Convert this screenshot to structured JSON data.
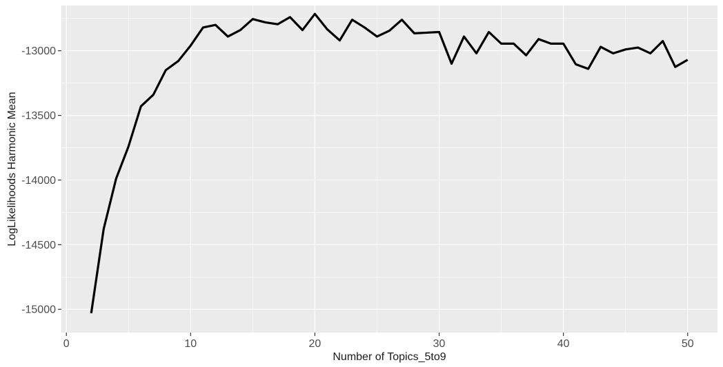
{
  "chart_data": {
    "type": "line",
    "title": "",
    "xlabel": "Number of Topics_5to9",
    "ylabel": "LogLikelihoods Harmonic Mean",
    "xlim": [
      -0.4,
      52.4
    ],
    "ylim": [
      -15180,
      -12650
    ],
    "x_ticks": [
      0,
      10,
      20,
      30,
      40,
      50
    ],
    "x_tick_labels": [
      "0",
      "10",
      "20",
      "30",
      "40",
      "50"
    ],
    "y_ticks": [
      -15000,
      -14500,
      -14000,
      -13500,
      -13000
    ],
    "y_tick_labels": [
      "-15000",
      "-14500",
      "-14000",
      "-13500",
      "-13000"
    ],
    "grid": true,
    "legend": "none",
    "colors": {
      "panel_background": "#ebebeb",
      "grid_major": "#ffffff",
      "line": "#000000",
      "tick_mark": "#333333"
    },
    "series": [
      {
        "x": [
          2,
          3,
          4,
          5,
          6,
          7,
          8,
          9,
          10,
          11,
          12,
          13,
          14,
          15,
          16,
          17,
          18,
          19,
          20,
          21,
          22,
          23,
          24,
          25,
          26,
          27,
          28,
          29,
          30,
          31,
          32,
          33,
          34,
          35,
          36,
          37,
          38,
          39,
          40,
          41,
          42,
          43,
          44,
          45,
          46,
          47,
          48,
          49,
          50
        ],
        "values": [
          -15030,
          -14380,
          -13990,
          -13740,
          -13430,
          -13340,
          -13150,
          -13080,
          -12960,
          -12820,
          -12800,
          -12890,
          -12840,
          -12755,
          -12780,
          -12795,
          -12740,
          -12840,
          -12715,
          -12835,
          -12920,
          -12760,
          -12820,
          -12890,
          -12845,
          -12760,
          -12865,
          -12860,
          -12855,
          -13100,
          -12890,
          -13020,
          -12855,
          -12945,
          -12945,
          -13035,
          -12910,
          -12945,
          -12945,
          -13105,
          -13140,
          -12970,
          -13020,
          -12990,
          -12975,
          -13020,
          -12925,
          -13125,
          -13070
        ]
      }
    ]
  }
}
